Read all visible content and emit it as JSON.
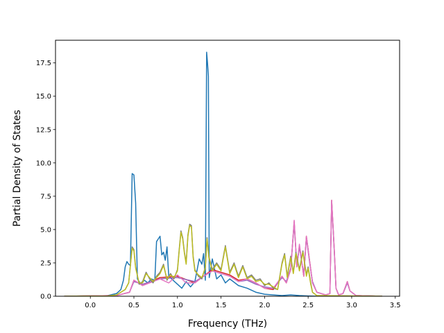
{
  "chart_data": {
    "type": "line",
    "xlabel": "Frequency (THz)",
    "ylabel": "Partial Density of States",
    "xlim": [
      -0.4,
      3.55
    ],
    "ylim": [
      0,
      19.2
    ],
    "xticks": [
      0.0,
      0.5,
      1.0,
      1.5,
      2.0,
      2.5,
      3.0,
      3.5
    ],
    "xtick_labels": [
      "0.0",
      "0.5",
      "1.0",
      "1.5",
      "2.0",
      "2.5",
      "3.0",
      "3.5"
    ],
    "yticks": [
      0.0,
      2.5,
      5.0,
      7.5,
      10.0,
      12.5,
      15.0,
      17.5
    ],
    "ytick_labels": [
      "0.0",
      "2.5",
      "5.0",
      "7.5",
      "10.0",
      "12.5",
      "15.0",
      "17.5"
    ],
    "grid": false,
    "legend": "none",
    "series": [
      {
        "color": "#1f77b4",
        "points": [
          [
            -0.3,
            0
          ],
          [
            0.1,
            0
          ],
          [
            0.2,
            0.05
          ],
          [
            0.3,
            0.2
          ],
          [
            0.35,
            0.5
          ],
          [
            0.38,
            1.2
          ],
          [
            0.4,
            2.2
          ],
          [
            0.42,
            2.6
          ],
          [
            0.44,
            2.4
          ],
          [
            0.46,
            2.3
          ],
          [
            0.48,
            9.2
          ],
          [
            0.5,
            9.1
          ],
          [
            0.52,
            7.0
          ],
          [
            0.54,
            1.3
          ],
          [
            0.58,
            0.9
          ],
          [
            0.62,
            1.2
          ],
          [
            0.66,
            1.0
          ],
          [
            0.7,
            1.3
          ],
          [
            0.74,
            1.2
          ],
          [
            0.76,
            4.1
          ],
          [
            0.78,
            4.3
          ],
          [
            0.8,
            4.5
          ],
          [
            0.82,
            3.1
          ],
          [
            0.84,
            3.3
          ],
          [
            0.86,
            2.7
          ],
          [
            0.88,
            3.7
          ],
          [
            0.9,
            1.5
          ],
          [
            0.95,
            1.2
          ],
          [
            1.0,
            0.9
          ],
          [
            1.05,
            0.6
          ],
          [
            1.1,
            1.1
          ],
          [
            1.15,
            0.7
          ],
          [
            1.2,
            1.1
          ],
          [
            1.25,
            2.8
          ],
          [
            1.28,
            2.4
          ],
          [
            1.3,
            3.2
          ],
          [
            1.32,
            1.2
          ],
          [
            1.335,
            18.3
          ],
          [
            1.345,
            17.5
          ],
          [
            1.355,
            16.5
          ],
          [
            1.365,
            1.4
          ],
          [
            1.4,
            2.8
          ],
          [
            1.45,
            1.3
          ],
          [
            1.5,
            1.6
          ],
          [
            1.55,
            1.0
          ],
          [
            1.6,
            1.3
          ],
          [
            1.7,
            0.8
          ],
          [
            1.8,
            0.6
          ],
          [
            1.9,
            0.3
          ],
          [
            2.0,
            0.15
          ],
          [
            2.1,
            0.1
          ],
          [
            2.2,
            0.05
          ],
          [
            2.3,
            0.1
          ],
          [
            2.4,
            0.05
          ],
          [
            2.5,
            0.02
          ],
          [
            2.6,
            0
          ],
          [
            3.35,
            0
          ]
        ]
      },
      {
        "color": "#d62728",
        "points": [
          [
            -0.3,
            0
          ],
          [
            0.3,
            0.05
          ],
          [
            0.45,
            0.3
          ],
          [
            0.5,
            1.2
          ],
          [
            0.6,
            0.8
          ],
          [
            0.8,
            1.4
          ],
          [
            1.0,
            1.5
          ],
          [
            1.2,
            1.0
          ],
          [
            1.4,
            2.0
          ],
          [
            1.5,
            1.8
          ],
          [
            1.6,
            1.6
          ],
          [
            1.7,
            1.2
          ],
          [
            1.8,
            1.3
          ],
          [
            1.9,
            1.0
          ],
          [
            2.0,
            0.6
          ],
          [
            2.1,
            0.5
          ],
          [
            2.2,
            1.5
          ],
          [
            2.25,
            1.0
          ],
          [
            2.3,
            2.0
          ],
          [
            2.34,
            5.6
          ],
          [
            2.37,
            2.2
          ],
          [
            2.4,
            3.8
          ],
          [
            2.45,
            1.5
          ],
          [
            2.48,
            4.5
          ],
          [
            2.52,
            2.5
          ],
          [
            2.55,
            1.0
          ],
          [
            2.6,
            0.3
          ],
          [
            2.7,
            0.1
          ],
          [
            2.75,
            0.2
          ],
          [
            2.77,
            7.2
          ],
          [
            2.8,
            3.5
          ],
          [
            2.82,
            0.6
          ],
          [
            2.85,
            0.1
          ],
          [
            2.9,
            0.2
          ],
          [
            2.95,
            1.1
          ],
          [
            2.98,
            0.4
          ],
          [
            3.05,
            0.05
          ],
          [
            3.35,
            0
          ]
        ]
      },
      {
        "color": "#9467bd",
        "points": [
          [
            -0.3,
            0
          ],
          [
            0.3,
            0.05
          ],
          [
            0.45,
            0.3
          ],
          [
            0.5,
            1.1
          ],
          [
            0.6,
            0.9
          ],
          [
            0.8,
            1.3
          ],
          [
            1.0,
            1.4
          ],
          [
            1.2,
            1.1
          ],
          [
            1.4,
            1.9
          ],
          [
            1.5,
            1.7
          ],
          [
            1.6,
            1.5
          ],
          [
            1.7,
            1.1
          ],
          [
            1.8,
            1.2
          ],
          [
            1.9,
            0.9
          ],
          [
            2.0,
            0.7
          ],
          [
            2.1,
            0.6
          ],
          [
            2.2,
            1.4
          ],
          [
            2.25,
            1.1
          ],
          [
            2.3,
            2.1
          ],
          [
            2.34,
            5.5
          ],
          [
            2.37,
            2.3
          ],
          [
            2.4,
            3.7
          ],
          [
            2.45,
            1.6
          ],
          [
            2.48,
            4.4
          ],
          [
            2.52,
            2.4
          ],
          [
            2.55,
            1.1
          ],
          [
            2.6,
            0.3
          ],
          [
            2.7,
            0.1
          ],
          [
            2.75,
            0.2
          ],
          [
            2.77,
            7.1
          ],
          [
            2.8,
            3.4
          ],
          [
            2.82,
            0.6
          ],
          [
            2.85,
            0.1
          ],
          [
            2.9,
            0.2
          ],
          [
            2.95,
            1.0
          ],
          [
            2.98,
            0.4
          ],
          [
            3.05,
            0.05
          ],
          [
            3.35,
            0
          ]
        ]
      },
      {
        "color": "#e377c2",
        "points": [
          [
            -0.3,
            0
          ],
          [
            0.3,
            0.05
          ],
          [
            0.45,
            0.3
          ],
          [
            0.5,
            1.2
          ],
          [
            0.6,
            0.8
          ],
          [
            0.8,
            1.3
          ],
          [
            0.9,
            1.0
          ],
          [
            1.0,
            1.6
          ],
          [
            1.1,
            1.0
          ],
          [
            1.2,
            1.0
          ],
          [
            1.3,
            1.5
          ],
          [
            1.4,
            1.9
          ],
          [
            1.5,
            1.7
          ],
          [
            1.6,
            1.5
          ],
          [
            1.7,
            1.1
          ],
          [
            1.8,
            1.3
          ],
          [
            1.9,
            1.0
          ],
          [
            2.0,
            0.6
          ],
          [
            2.1,
            0.6
          ],
          [
            2.2,
            1.5
          ],
          [
            2.25,
            1.0
          ],
          [
            2.3,
            2.0
          ],
          [
            2.34,
            5.7
          ],
          [
            2.37,
            2.2
          ],
          [
            2.4,
            3.9
          ],
          [
            2.45,
            1.5
          ],
          [
            2.48,
            4.5
          ],
          [
            2.52,
            2.5
          ],
          [
            2.55,
            1.0
          ],
          [
            2.6,
            0.3
          ],
          [
            2.7,
            0.1
          ],
          [
            2.75,
            0.2
          ],
          [
            2.77,
            7.2
          ],
          [
            2.8,
            3.5
          ],
          [
            2.82,
            0.6
          ],
          [
            2.85,
            0.1
          ],
          [
            2.9,
            0.2
          ],
          [
            2.95,
            1.1
          ],
          [
            2.98,
            0.4
          ],
          [
            3.05,
            0.05
          ],
          [
            3.35,
            0
          ]
        ]
      },
      {
        "color": "#7f7f7f",
        "points": [
          [
            -0.3,
            0
          ],
          [
            0.2,
            0.02
          ],
          [
            0.3,
            0.1
          ],
          [
            0.4,
            0.5
          ],
          [
            0.44,
            1.0
          ],
          [
            0.48,
            3.7
          ],
          [
            0.5,
            3.5
          ],
          [
            0.52,
            2.2
          ],
          [
            0.56,
            0.9
          ],
          [
            0.6,
            1.1
          ],
          [
            0.64,
            1.8
          ],
          [
            0.68,
            1.3
          ],
          [
            0.72,
            1.0
          ],
          [
            0.76,
            1.5
          ],
          [
            0.8,
            1.8
          ],
          [
            0.84,
            2.4
          ],
          [
            0.88,
            1.2
          ],
          [
            0.92,
            1.7
          ],
          [
            0.96,
            1.3
          ],
          [
            1.0,
            2.0
          ],
          [
            1.02,
            3.5
          ],
          [
            1.04,
            4.9
          ],
          [
            1.06,
            4.4
          ],
          [
            1.08,
            3.3
          ],
          [
            1.1,
            2.5
          ],
          [
            1.12,
            4.6
          ],
          [
            1.14,
            5.4
          ],
          [
            1.16,
            5.3
          ],
          [
            1.18,
            3.0
          ],
          [
            1.2,
            2.0
          ],
          [
            1.24,
            1.5
          ],
          [
            1.28,
            1.3
          ],
          [
            1.32,
            2.2
          ],
          [
            1.34,
            4.4
          ],
          [
            1.36,
            3.0
          ],
          [
            1.4,
            2.0
          ],
          [
            1.45,
            2.5
          ],
          [
            1.5,
            2.0
          ],
          [
            1.55,
            3.8
          ],
          [
            1.6,
            1.8
          ],
          [
            1.65,
            2.5
          ],
          [
            1.7,
            1.5
          ],
          [
            1.75,
            2.3
          ],
          [
            1.8,
            1.4
          ],
          [
            1.85,
            1.6
          ],
          [
            1.9,
            1.2
          ],
          [
            1.95,
            1.3
          ],
          [
            2.0,
            0.8
          ],
          [
            2.05,
            1.0
          ],
          [
            2.1,
            0.6
          ],
          [
            2.15,
            0.5
          ],
          [
            2.2,
            2.5
          ],
          [
            2.23,
            3.2
          ],
          [
            2.26,
            1.5
          ],
          [
            2.3,
            3.0
          ],
          [
            2.33,
            1.8
          ],
          [
            2.36,
            3.3
          ],
          [
            2.4,
            2.0
          ],
          [
            2.44,
            3.4
          ],
          [
            2.48,
            1.6
          ],
          [
            2.5,
            2.2
          ],
          [
            2.53,
            1.0
          ],
          [
            2.55,
            0.3
          ],
          [
            2.6,
            0.05
          ],
          [
            3.35,
            0
          ]
        ]
      },
      {
        "color": "#bcbd22",
        "points": [
          [
            -0.3,
            0
          ],
          [
            0.2,
            0.02
          ],
          [
            0.3,
            0.1
          ],
          [
            0.4,
            0.5
          ],
          [
            0.44,
            1.0
          ],
          [
            0.48,
            3.6
          ],
          [
            0.5,
            3.4
          ],
          [
            0.52,
            2.1
          ],
          [
            0.56,
            1.0
          ],
          [
            0.6,
            1.0
          ],
          [
            0.64,
            1.7
          ],
          [
            0.68,
            1.4
          ],
          [
            0.72,
            1.1
          ],
          [
            0.76,
            1.4
          ],
          [
            0.8,
            1.7
          ],
          [
            0.84,
            2.3
          ],
          [
            0.88,
            1.3
          ],
          [
            0.92,
            1.6
          ],
          [
            0.96,
            1.4
          ],
          [
            1.0,
            1.9
          ],
          [
            1.02,
            3.4
          ],
          [
            1.04,
            4.8
          ],
          [
            1.06,
            4.3
          ],
          [
            1.08,
            3.2
          ],
          [
            1.1,
            2.4
          ],
          [
            1.12,
            4.5
          ],
          [
            1.14,
            5.3
          ],
          [
            1.16,
            5.2
          ],
          [
            1.18,
            2.9
          ],
          [
            1.2,
            1.9
          ],
          [
            1.24,
            1.6
          ],
          [
            1.28,
            1.4
          ],
          [
            1.32,
            2.1
          ],
          [
            1.34,
            4.3
          ],
          [
            1.36,
            2.9
          ],
          [
            1.4,
            1.9
          ],
          [
            1.45,
            2.4
          ],
          [
            1.5,
            1.9
          ],
          [
            1.55,
            3.7
          ],
          [
            1.6,
            1.7
          ],
          [
            1.65,
            2.4
          ],
          [
            1.7,
            1.4
          ],
          [
            1.75,
            2.2
          ],
          [
            1.8,
            1.3
          ],
          [
            1.85,
            1.5
          ],
          [
            1.9,
            1.1
          ],
          [
            1.95,
            1.2
          ],
          [
            2.0,
            0.9
          ],
          [
            2.05,
            0.9
          ],
          [
            2.1,
            0.7
          ],
          [
            2.15,
            0.5
          ],
          [
            2.2,
            2.4
          ],
          [
            2.23,
            3.1
          ],
          [
            2.26,
            1.4
          ],
          [
            2.3,
            2.9
          ],
          [
            2.33,
            1.7
          ],
          [
            2.36,
            3.2
          ],
          [
            2.4,
            1.9
          ],
          [
            2.44,
            3.3
          ],
          [
            2.48,
            1.5
          ],
          [
            2.5,
            2.1
          ],
          [
            2.53,
            0.9
          ],
          [
            2.55,
            0.3
          ],
          [
            2.6,
            0.05
          ],
          [
            3.35,
            0
          ]
        ]
      }
    ]
  }
}
